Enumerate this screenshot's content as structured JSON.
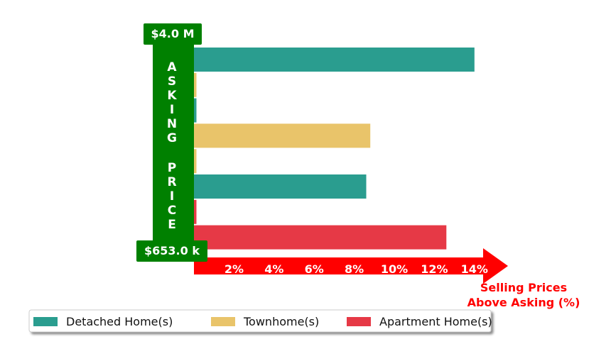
{
  "chart_data": {
    "type": "bar",
    "orientation": "horizontal",
    "x_range": [
      0,
      16
    ],
    "x_ticks": [
      "2%",
      "4%",
      "6%",
      "8%",
      "10%",
      "12%",
      "14%"
    ],
    "x_tick_values": [
      2,
      4,
      6,
      8,
      10,
      12,
      14
    ],
    "xlabel_line1": "Selling Prices",
    "xlabel_line2": "Above Asking (%)",
    "ylabel": "ASKING PRICE",
    "y_top_label": "$4.0 M",
    "y_bottom_label": "$653.0 k",
    "legend_position": "bottom-left",
    "series": [
      {
        "name": "Detached Home(s)",
        "color": "#2a9d8f"
      },
      {
        "name": "Townhome(s)",
        "color": "#e9c46a"
      },
      {
        "name": "Apartment Home(s)",
        "color": "#e63946"
      }
    ],
    "bars": [
      {
        "series": 0,
        "value": 14.0
      },
      {
        "series": 1,
        "value": 0.1
      },
      {
        "series": 0,
        "value": 0.1
      },
      {
        "series": 1,
        "value": 8.8
      },
      {
        "series": 1,
        "value": 0.1
      },
      {
        "series": 0,
        "value": 8.6
      },
      {
        "series": 2,
        "value": 0.1
      },
      {
        "series": 2,
        "value": 12.6
      }
    ]
  },
  "colors": {
    "axis_green": "#008000",
    "arrow_red": "#ff0000"
  }
}
